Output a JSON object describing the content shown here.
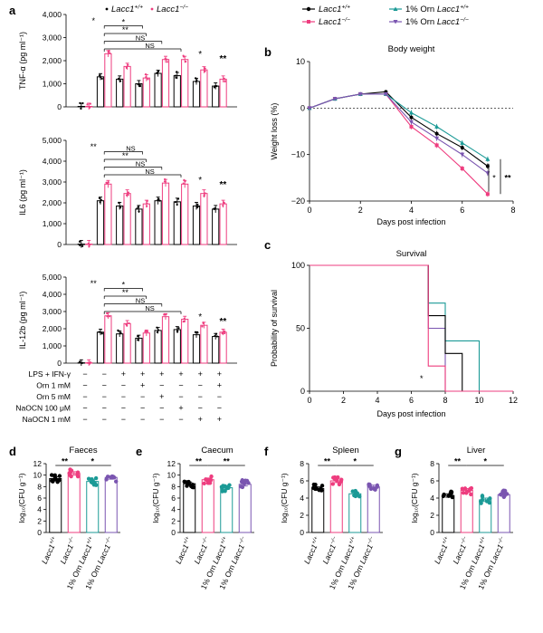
{
  "colors": {
    "wt": "#000000",
    "ko": "#ee3d7f",
    "orn_wt": "#1b9a96",
    "orn_ko": "#7a55b0",
    "axis": "#000000"
  },
  "panel_letters": [
    "a",
    "b",
    "c",
    "d",
    "e",
    "f",
    "g"
  ],
  "legend_a": {
    "wt": {
      "base": "Lacc1",
      "sup": "+/+"
    },
    "ko": {
      "base": "Lacc1",
      "sup": "−/−"
    }
  },
  "legend_b": [
    {
      "base": "Lacc1",
      "sup": "+/+",
      "prefix": ""
    },
    {
      "base": "Lacc1",
      "sup": "−/−",
      "prefix": ""
    },
    {
      "base": "Lacc1",
      "sup": "+/+",
      "prefix": "1% Orn "
    },
    {
      "base": "Lacc1",
      "sup": "−/−",
      "prefix": "1% Orn "
    }
  ],
  "treatment_table": {
    "rows": [
      {
        "label": "LPS + IFN-γ",
        "marks": [
          "−",
          "−",
          "+",
          "+",
          "+",
          "+",
          "+",
          "+"
        ]
      },
      {
        "label": "Orn 1 mM",
        "marks": [
          "−",
          "−",
          "−",
          "+",
          "−",
          "−",
          "−",
          "+"
        ]
      },
      {
        "label": "Orn 5 mM",
        "marks": [
          "−",
          "−",
          "−",
          "−",
          "+",
          "−",
          "−",
          "−"
        ]
      },
      {
        "label": "NaOCN 100 μM",
        "marks": [
          "−",
          "−",
          "−",
          "−",
          "−",
          "+",
          "−",
          "−"
        ]
      },
      {
        "label": "NaOCN 1 mM",
        "marks": [
          "−",
          "−",
          "−",
          "−",
          "−",
          "−",
          "+",
          "+"
        ]
      }
    ]
  },
  "chart_data": [
    {
      "id": "a1",
      "type": "bar",
      "ylabel": "TNF-α (pg ml⁻¹)",
      "ylim": [
        0,
        4000
      ],
      "yticks": [
        0,
        1000,
        2000,
        3000,
        4000
      ],
      "ytick_labels": [
        "0",
        "1,000",
        "2,000",
        "3,000",
        "4,000"
      ],
      "series": [
        {
          "name": "Lacc1+/+",
          "values": [
            20,
            1300,
            1200,
            1000,
            1450,
            1350,
            1100,
            900
          ]
        },
        {
          "name": "Lacc1−/−",
          "values": [
            20,
            2300,
            1750,
            1250,
            2050,
            2050,
            1600,
            1200
          ]
        }
      ],
      "brackets": [
        {
          "label": "*",
          "level": 0
        },
        {
          "label": "*",
          "level": 1
        },
        {
          "label": "**",
          "level": 2
        },
        {
          "label": "NS",
          "level": 3
        },
        {
          "label": "NS",
          "level": 4
        }
      ],
      "side_stars": [
        "*",
        "**"
      ]
    },
    {
      "id": "a2",
      "type": "bar",
      "ylabel": "IL6 (pg ml⁻¹)",
      "ylim": [
        0,
        5000
      ],
      "yticks": [
        0,
        1000,
        2000,
        3000,
        4000,
        5000
      ],
      "ytick_labels": [
        "0",
        "1,000",
        "2,000",
        "3,000",
        "4,000",
        "5,000"
      ],
      "series": [
        {
          "name": "Lacc1+/+",
          "values": [
            20,
            2100,
            1850,
            1700,
            2100,
            2050,
            1850,
            1700
          ]
        },
        {
          "name": "Lacc1−/−",
          "values": [
            20,
            2900,
            2450,
            1950,
            2950,
            2900,
            2450,
            1950
          ]
        }
      ],
      "brackets": [
        {
          "label": "**",
          "level": 0
        },
        {
          "label": "NS",
          "level": 1
        },
        {
          "label": "**",
          "level": 2
        },
        {
          "label": "NS",
          "level": 3
        },
        {
          "label": "NS",
          "level": 4
        }
      ],
      "side_stars": [
        "*",
        "**"
      ]
    },
    {
      "id": "a3",
      "type": "bar",
      "ylabel": "IL-12b (pg ml⁻¹)",
      "ylim": [
        0,
        5000
      ],
      "yticks": [
        0,
        1000,
        2000,
        3000,
        4000,
        5000
      ],
      "ytick_labels": [
        "0",
        "1,000",
        "2,000",
        "3,000",
        "4,000",
        "5,000"
      ],
      "series": [
        {
          "name": "Lacc1+/+",
          "values": [
            20,
            1800,
            1700,
            1450,
            1900,
            1950,
            1650,
            1550
          ]
        },
        {
          "name": "Lacc1−/−",
          "values": [
            20,
            2750,
            2300,
            1750,
            2700,
            2550,
            2200,
            1800
          ]
        }
      ],
      "brackets": [
        {
          "label": "**",
          "level": 0
        },
        {
          "label": "*",
          "level": 1
        },
        {
          "label": "**",
          "level": 2
        },
        {
          "label": "NS",
          "level": 3
        },
        {
          "label": "NS",
          "level": 4
        }
      ],
      "side_stars": [
        "*",
        "**"
      ]
    },
    {
      "id": "b",
      "type": "line",
      "title": "Body weight",
      "xlabel": "Days post infection",
      "ylabel": "Weight loss (%)",
      "xlim": [
        0,
        8
      ],
      "ylim": [
        -20,
        10
      ],
      "xticks": [
        0,
        2,
        4,
        6,
        8
      ],
      "yticks": [
        -20,
        -10,
        0,
        10
      ],
      "x": [
        0,
        1,
        2,
        3,
        4,
        5,
        6,
        7
      ],
      "series": [
        {
          "name": "Lacc1+/+",
          "values": [
            0,
            2,
            3,
            3.5,
            -2,
            -5.5,
            -8.5,
            -12.5
          ]
        },
        {
          "name": "Lacc1−/−",
          "values": [
            0,
            2,
            3,
            3,
            -4,
            -8,
            -13,
            -18.5
          ]
        },
        {
          "name": "1% Orn Lacc1+/+",
          "values": [
            0,
            2,
            3,
            3,
            -1,
            -4,
            -7.5,
            -11
          ]
        },
        {
          "name": "1% Orn Lacc1−/−",
          "values": [
            0,
            2,
            3,
            3,
            -3,
            -6.5,
            -10,
            -14
          ]
        }
      ],
      "annotations": [
        "*",
        "**"
      ]
    },
    {
      "id": "c",
      "type": "line",
      "title": "Survival",
      "xlabel": "Days post infection",
      "ylabel": "Probability of survival",
      "xlim": [
        0,
        12
      ],
      "ylim": [
        0,
        100
      ],
      "xticks": [
        0,
        2,
        4,
        6,
        8,
        10,
        12
      ],
      "yticks": [
        0,
        50,
        100
      ],
      "series": [
        {
          "name": "Lacc1+/+",
          "steps": [
            [
              0,
              100
            ],
            [
              7,
              100
            ],
            [
              7,
              60
            ],
            [
              8,
              60
            ],
            [
              8,
              30
            ],
            [
              9,
              30
            ],
            [
              9,
              0
            ],
            [
              12,
              0
            ]
          ]
        },
        {
          "name": "Lacc1−/−",
          "steps": [
            [
              0,
              100
            ],
            [
              7,
              100
            ],
            [
              7,
              20
            ],
            [
              8,
              20
            ],
            [
              8,
              0
            ],
            [
              12,
              0
            ]
          ]
        },
        {
          "name": "1% Orn Lacc1+/+",
          "steps": [
            [
              0,
              100
            ],
            [
              7,
              100
            ],
            [
              7,
              70
            ],
            [
              8,
              70
            ],
            [
              8,
              40
            ],
            [
              10,
              40
            ],
            [
              10,
              0
            ],
            [
              12,
              0
            ]
          ]
        },
        {
          "name": "1% Orn Lacc1−/−",
          "steps": [
            [
              0,
              100
            ],
            [
              7,
              100
            ],
            [
              7,
              50
            ],
            [
              8,
              50
            ],
            [
              8,
              0
            ],
            [
              12,
              0
            ]
          ]
        }
      ],
      "annotations": [
        "*"
      ]
    },
    {
      "id": "d",
      "type": "bar",
      "title": "Faeces",
      "ylabel": "log₁₀(CFU g⁻¹)",
      "ylim": [
        0,
        12
      ],
      "yticks": [
        0,
        2,
        4,
        6,
        8,
        10,
        12
      ],
      "categories": [
        "Lacc1+/+",
        "Lacc1−/−",
        "1% Orn Lacc1+/+",
        "1% Orn Lacc1−/−"
      ],
      "values": [
        9.4,
        10.3,
        8.9,
        9.6
      ],
      "brackets": [
        "**",
        "*"
      ]
    },
    {
      "id": "e",
      "type": "bar",
      "title": "Caecum",
      "ylabel": "log₁₀(CFU g⁻¹)",
      "ylim": [
        0,
        12
      ],
      "yticks": [
        0,
        2,
        4,
        6,
        8,
        10,
        12
      ],
      "categories": [
        "Lacc1+/+",
        "Lacc1−/−",
        "1% Orn Lacc1+/+",
        "1% Orn Lacc1−/−"
      ],
      "values": [
        8.5,
        9.2,
        7.8,
        8.4
      ],
      "brackets": [
        "**",
        "**"
      ]
    },
    {
      "id": "f",
      "type": "bar",
      "title": "Spleen",
      "ylabel": "log₁₀(CFU g⁻¹)",
      "ylim": [
        0,
        8
      ],
      "yticks": [
        0,
        2,
        4,
        6,
        8
      ],
      "categories": [
        "Lacc1+/+",
        "Lacc1−/−",
        "1% Orn Lacc1+/+",
        "1% Orn Lacc1−/−"
      ],
      "values": [
        5.1,
        6.0,
        4.5,
        5.3
      ],
      "brackets": [
        "**",
        "*"
      ]
    },
    {
      "id": "g",
      "type": "bar",
      "title": "Liver",
      "ylabel": "log₁₀(CFU g⁻¹)",
      "ylim": [
        0,
        8
      ],
      "yticks": [
        0,
        2,
        4,
        6,
        8
      ],
      "categories": [
        "Lacc1+/+",
        "Lacc1−/−",
        "1% Orn Lacc1+/+",
        "1% Orn Lacc1−/−"
      ],
      "values": [
        4.3,
        4.9,
        3.8,
        4.4
      ],
      "brackets": [
        "**",
        "*"
      ]
    }
  ]
}
